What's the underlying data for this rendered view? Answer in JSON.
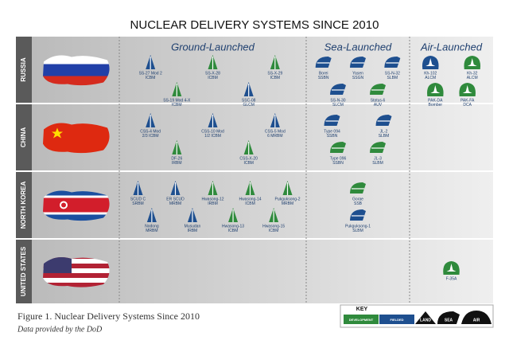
{
  "title": "NUCLEAR DELIVERY SYSTEMS SINCE 2010",
  "columns": [
    "Ground-Launched",
    "Sea-Launched",
    "Air-Launched"
  ],
  "rows": [
    {
      "country": "RUSSIA",
      "cells": [
        [
          {
            "label": [
              "SS-27 Mod 2",
              "ICBM"
            ],
            "color": "#1e4f8f"
          },
          {
            "label": [
              "SS-X-28",
              "ICBM"
            ],
            "color": "#2f8a3c"
          },
          {
            "label": [
              "SS-X-29",
              "ICBM"
            ],
            "color": "#2f8a3c"
          },
          {
            "label": [
              "SS-19 Mod 4-X",
              "ICBM"
            ],
            "color": "#2f8a3c"
          },
          {
            "label": [
              "SSC-08",
              "GLCM"
            ],
            "color": "#1e4f8f"
          }
        ],
        [
          {
            "label": [
              "Borei",
              "SSBN"
            ],
            "color": "#1e4f8f"
          },
          {
            "label": [
              "Yasen",
              "SSGN"
            ],
            "color": "#1e4f8f"
          },
          {
            "label": [
              "SS-N-32",
              "SLBM"
            ],
            "color": "#1e4f8f"
          },
          {
            "label": [
              "SS-N-30",
              "SLCM"
            ],
            "color": "#1e4f8f"
          },
          {
            "label": [
              "Status-6",
              "AUV"
            ],
            "color": "#2f8a3c"
          }
        ],
        [
          {
            "label": [
              "Kh-102",
              "ALCM"
            ],
            "color": "#1e4f8f"
          },
          {
            "label": [
              "Kh-32",
              "ALCM"
            ],
            "color": "#2f8a3c"
          },
          {
            "label": [
              "PAK-DA",
              "Bomber"
            ],
            "color": "#2f8a3c"
          },
          {
            "label": [
              "PAK-FA",
              "DCA"
            ],
            "color": "#2f8a3c"
          }
        ]
      ]
    },
    {
      "country": "CHINA",
      "cells": [
        [
          {
            "label": [
              "CSS-4 Mod",
              "2/3 ICBM"
            ],
            "color": "#1e4f8f"
          },
          {
            "label": [
              "CSS-10 Mod",
              "1/2 ICBM"
            ],
            "color": "#1e4f8f"
          },
          {
            "label": [
              "CSS-5 Mod",
              "6 MRBM"
            ],
            "color": "#1e4f8f"
          },
          {
            "label": [
              "DF-26",
              "IRBM"
            ],
            "color": "#2f8a3c"
          },
          {
            "label": [
              "CSS-X-20",
              "ICBM"
            ],
            "color": "#2f8a3c"
          }
        ],
        [
          {
            "label": [
              "Type 094",
              "SSBN"
            ],
            "color": "#1e4f8f"
          },
          {
            "label": [
              "JL-2",
              "SLBM"
            ],
            "color": "#1e4f8f"
          },
          {
            "label": [
              "Type 096",
              "SSBN"
            ],
            "color": "#2f8a3c"
          },
          {
            "label": [
              "JL-3",
              "SLBM"
            ],
            "color": "#2f8a3c"
          }
        ],
        []
      ]
    },
    {
      "country": "NORTH KOREA",
      "cells": [
        [
          {
            "label": [
              "SCUD C",
              "SRBM"
            ],
            "color": "#1e4f8f"
          },
          {
            "label": [
              "ER SCUD",
              "MRBM"
            ],
            "color": "#1e4f8f"
          },
          {
            "label": [
              "Hwasong-12",
              "IRBM"
            ],
            "color": "#2f8a3c"
          },
          {
            "label": [
              "Hwasong-14",
              "ICBM"
            ],
            "color": "#2f8a3c"
          },
          {
            "label": [
              "Pukguksong-2",
              "MRBM"
            ],
            "color": "#2f8a3c"
          },
          {
            "label": [
              "Nodong",
              "MRBM"
            ],
            "color": "#1e4f8f"
          },
          {
            "label": [
              "Musudan",
              "IRBM"
            ],
            "color": "#1e4f8f"
          },
          {
            "label": [
              "Hwasong-13",
              "ICBM"
            ],
            "color": "#2f8a3c"
          },
          {
            "label": [
              "Hwasong-15",
              "ICBM"
            ],
            "color": "#2f8a3c"
          }
        ],
        [
          {
            "label": [
              "Gorae",
              "SSB"
            ],
            "color": "#2f8a3c"
          },
          {
            "label": [
              "Pukguksong-1",
              "SLBM"
            ],
            "color": "#1e4f8f"
          }
        ],
        []
      ]
    },
    {
      "country": "UNITED STATES",
      "cells": [
        [],
        [],
        [
          {
            "label": [
              "F-35A"
            ],
            "color": "#2f8a3c"
          }
        ]
      ]
    }
  ],
  "caption": {
    "figure": "Figure 1. Nuclear Delivery Systems Since 2010",
    "source": "Data provided by the DoD"
  },
  "key": {
    "title": "KEY",
    "items": [
      {
        "label": "DEVELOPMENT",
        "color": "#2f8a3c"
      },
      {
        "label": "FIELDED",
        "color": "#1e4f8f"
      },
      {
        "label": "LAND",
        "color": "#111111"
      },
      {
        "label": "SEA",
        "color": "#111111"
      },
      {
        "label": "AIR",
        "color": "#111111"
      }
    ]
  }
}
